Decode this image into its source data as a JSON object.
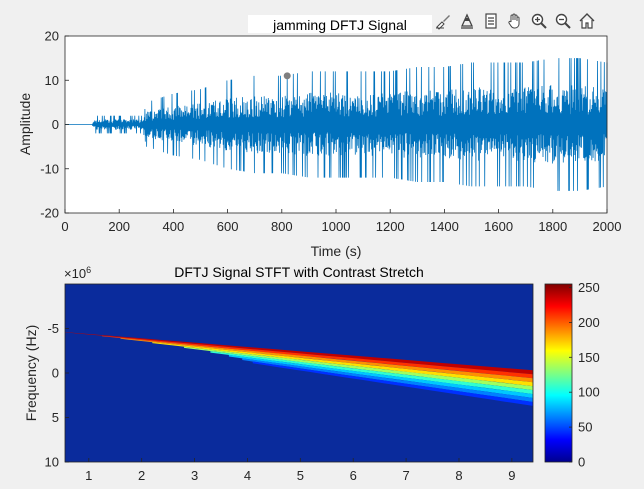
{
  "toolbar": {
    "icons": [
      "brush-icon",
      "data-tips-icon",
      "legend-icon",
      "pan-hand-icon",
      "zoom-in-icon",
      "zoom-out-icon",
      "home-icon"
    ]
  },
  "colors": {
    "signal": "#0072bd",
    "background": "#f0f0f0"
  },
  "chart_data": [
    {
      "type": "line",
      "title": "jamming  DFTJ Signal",
      "xlabel": "Time (s)",
      "ylabel": "Amplitude",
      "xlim": [
        0,
        2000
      ],
      "ylim": [
        -20,
        20
      ],
      "xticks": [
        "0",
        "200",
        "400",
        "600",
        "800",
        "1000",
        "1200",
        "1400",
        "1600",
        "1800",
        "2000"
      ],
      "yticks": [
        "20",
        "10",
        "0",
        "-10",
        "-20"
      ],
      "grid": false,
      "series": [
        {
          "x": [
            0,
            100,
            110,
            200,
            290,
            300,
            400,
            500,
            600,
            700,
            800,
            900,
            1000,
            1100,
            1200,
            1300,
            1400,
            1500,
            1600,
            1700,
            1800,
            1900,
            2000
          ],
          "envelope_max": [
            0,
            0,
            2,
            2,
            2,
            5,
            7,
            8,
            10,
            11,
            11,
            12,
            12,
            12,
            12,
            13,
            13,
            14,
            14,
            14,
            15,
            15,
            14
          ],
          "envelope_min": [
            0,
            0,
            -2,
            -2,
            -2,
            -5,
            -7,
            -8,
            -10,
            -11,
            -11,
            -12,
            -12,
            -12,
            -12,
            -13,
            -13,
            -14,
            -14,
            -14,
            -15,
            -15,
            -14
          ]
        }
      ],
      "marker": {
        "x": 820,
        "y": 11
      }
    },
    {
      "type": "heatmap",
      "title": "DFTJ Signal STFT with Contrast Stretch",
      "ylabel": "Frequency (Hz)",
      "y_multiplier": "×10",
      "y_exponent": "6",
      "xlim": [
        0.55,
        9.4
      ],
      "ylim": [
        -10,
        10
      ],
      "xticks": [
        "1",
        "2",
        "3",
        "4",
        "5",
        "6",
        "7",
        "8",
        "9"
      ],
      "yticks": [
        "-5",
        "0",
        "5",
        "10"
      ],
      "colorbar": {
        "min": 0,
        "max": 255,
        "ticks": [
          "250",
          "200",
          "150",
          "100",
          "50",
          "0"
        ],
        "colormap": "jet"
      },
      "chirp": {
        "x": [
          0.55,
          9.4
        ],
        "upper_edge": [
          -4.6,
          -0.3
        ],
        "lower_edge": [
          -4.3,
          3.7
        ],
        "bands": 9,
        "band_start_x": [
          0.55,
          1.25,
          1.6,
          2.2,
          2.8,
          3.3,
          3.65,
          3.9,
          4.1
        ]
      }
    }
  ]
}
